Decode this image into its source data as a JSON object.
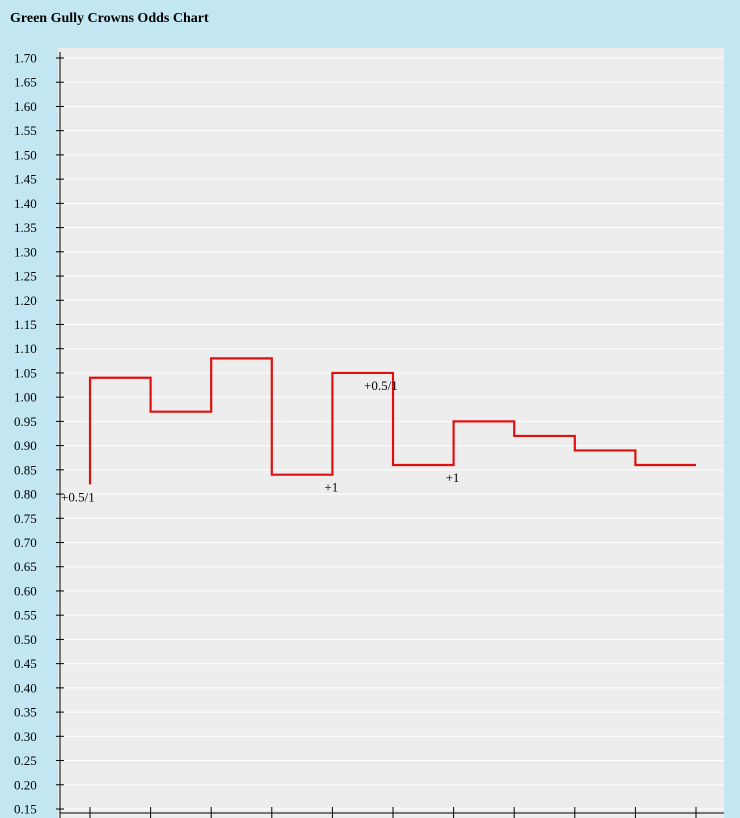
{
  "title": "Green Gully Crowns Odds Chart",
  "colors": {
    "page_background": "#c2e6f2",
    "plot_background": "#eeeded",
    "gridline": "#ffffff",
    "line": "#e01010",
    "axis": "#000000"
  },
  "chart_data": {
    "type": "line",
    "title": "Green Gully Crowns Odds Chart",
    "xlabel": "",
    "ylabel": "",
    "step": true,
    "grid": true,
    "ylim": [
      0.15,
      1.7
    ],
    "yticks": [
      "1.70",
      "1.65",
      "1.60",
      "1.55",
      "1.50",
      "1.45",
      "1.40",
      "1.35",
      "1.30",
      "1.25",
      "1.20",
      "1.15",
      "1.10",
      "1.05",
      "1.00",
      "0.95",
      "0.90",
      "0.85",
      "0.80",
      "0.75",
      "0.70",
      "0.65",
      "0.60",
      "0.55",
      "0.50",
      "0.45",
      "0.40",
      "0.35",
      "0.30",
      "0.25",
      "0.20",
      "0.15"
    ],
    "x": [
      0,
      1,
      2,
      3,
      4,
      5,
      6,
      7,
      8,
      9,
      10
    ],
    "values": [
      0.82,
      1.04,
      0.97,
      1.08,
      0.84,
      1.05,
      0.86,
      0.95,
      0.92,
      0.89,
      0.86
    ],
    "annotations": [
      {
        "x": 0,
        "text": "+0.5/1",
        "position": "below"
      },
      {
        "x": 4,
        "text": "+1",
        "position": "below"
      },
      {
        "x": 5,
        "text": "+0.5/1",
        "position": "below"
      },
      {
        "x": 6,
        "text": "+1",
        "position": "below"
      }
    ]
  }
}
